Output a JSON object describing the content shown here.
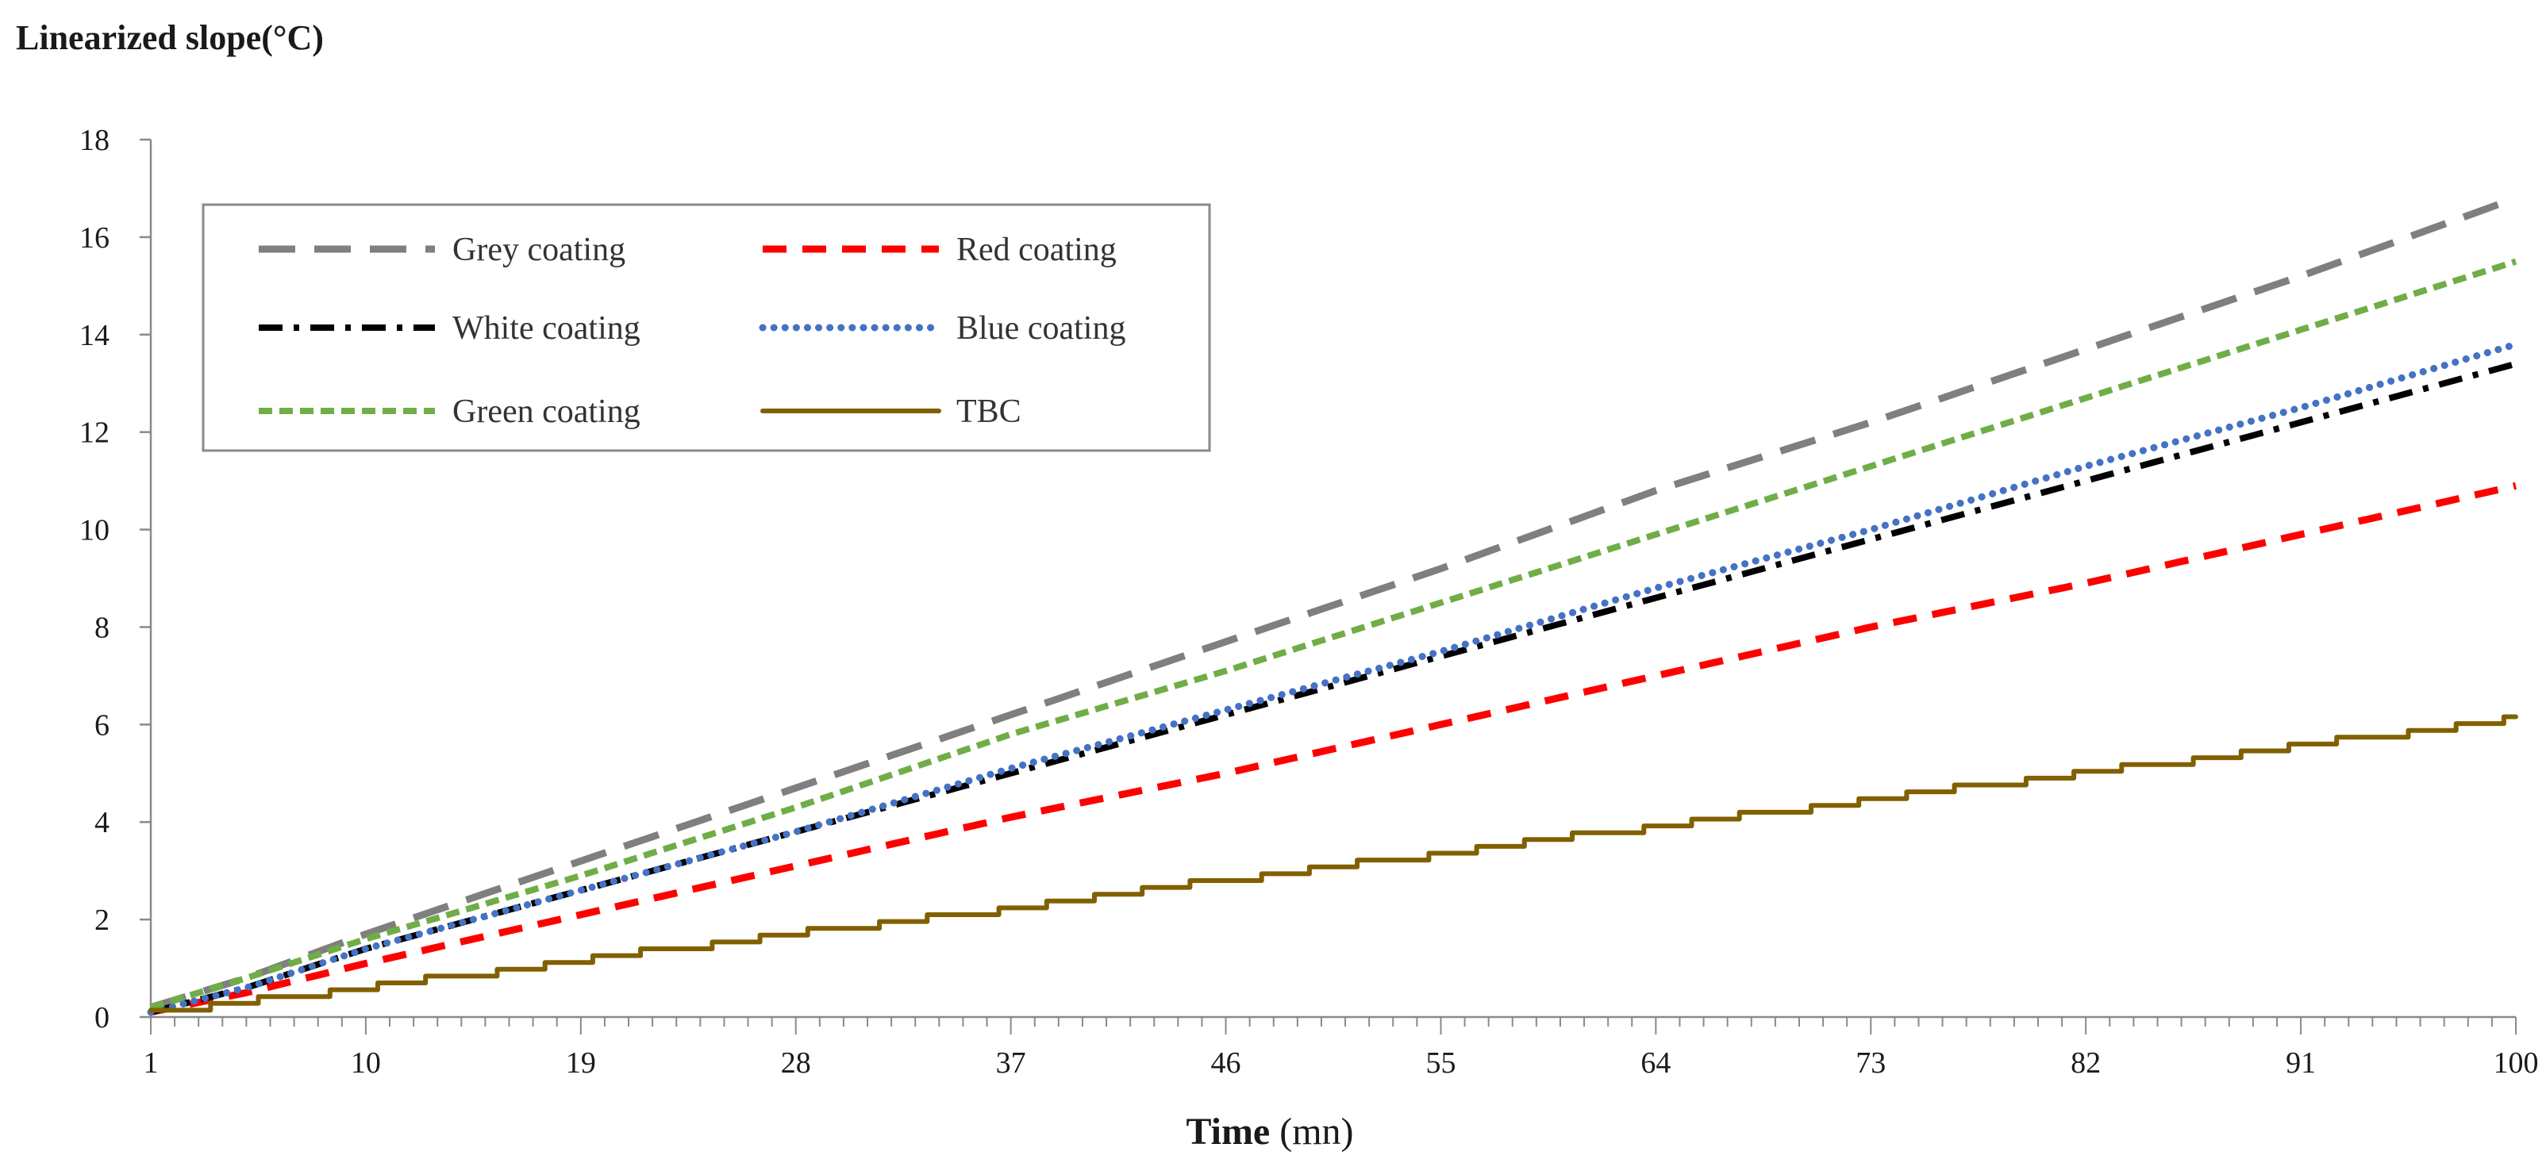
{
  "chart_data": {
    "type": "line",
    "title": "Linearized slope(°C)",
    "xlabel": "Time",
    "xlabel_unit": "(mn)",
    "ylabel": "Linearized slope(°C)",
    "ylim": [
      0,
      18
    ],
    "yticks": [
      "0",
      "2",
      "4",
      "6",
      "8",
      "10",
      "12",
      "14",
      "16",
      "18"
    ],
    "xlim": [
      1,
      100
    ],
    "xticks": [
      "1",
      "10",
      "19",
      "28",
      "37",
      "46",
      "55",
      "64",
      "73",
      "82",
      "91",
      "100"
    ],
    "grid": false,
    "legend_position": "top-left",
    "series": [
      {
        "name": "Grey coating",
        "color": "#7f7f7f",
        "style": "long-dash",
        "anchors_x": [
          1,
          5,
          10,
          19,
          28,
          37,
          46,
          55,
          64,
          73,
          82,
          91,
          100
        ],
        "anchors_y": [
          0.2,
          0.8,
          1.7,
          3.2,
          4.7,
          6.2,
          7.7,
          9.2,
          10.8,
          12.2,
          13.7,
          15.2,
          16.8
        ]
      },
      {
        "name": "Red coating",
        "color": "#ff0000",
        "style": "dash",
        "anchors_x": [
          1,
          5,
          10,
          19,
          28,
          37,
          46,
          55,
          64,
          73,
          82,
          91,
          100
        ],
        "anchors_y": [
          0.1,
          0.5,
          1.1,
          2.1,
          3.1,
          4.1,
          5.0,
          6.0,
          7.0,
          8.0,
          8.9,
          9.9,
          10.9
        ]
      },
      {
        "name": "White coating",
        "color": "#000000",
        "style": "dash-dot",
        "anchors_x": [
          1,
          5,
          10,
          19,
          28,
          37,
          46,
          55,
          64,
          73,
          82,
          91,
          100
        ],
        "anchors_y": [
          0.1,
          0.6,
          1.4,
          2.6,
          3.8,
          5.0,
          6.2,
          7.4,
          8.6,
          9.8,
          11.0,
          12.2,
          13.4
        ]
      },
      {
        "name": "Blue coating",
        "color": "#4472c4",
        "style": "dot",
        "anchors_x": [
          1,
          5,
          10,
          19,
          28,
          37,
          46,
          55,
          64,
          73,
          82,
          91,
          100
        ],
        "anchors_y": [
          0.1,
          0.6,
          1.4,
          2.6,
          3.8,
          5.1,
          6.3,
          7.5,
          8.8,
          10.0,
          11.3,
          12.5,
          13.8
        ]
      },
      {
        "name": "Green coating",
        "color": "#70ad47",
        "style": "short-dash",
        "anchors_x": [
          1,
          5,
          10,
          19,
          28,
          37,
          46,
          55,
          64,
          73,
          82,
          91,
          100
        ],
        "anchors_y": [
          0.2,
          0.8,
          1.6,
          2.9,
          4.3,
          5.8,
          7.1,
          8.5,
          9.9,
          11.3,
          12.7,
          14.1,
          15.5
        ]
      },
      {
        "name": "TBC",
        "color": "#806000",
        "style": "solid",
        "anchors_x": [
          1,
          5,
          10,
          19,
          28,
          37,
          46,
          55,
          64,
          73,
          82,
          91,
          100
        ],
        "anchors_y": [
          0.1,
          0.3,
          0.6,
          1.15,
          1.7,
          2.2,
          2.8,
          3.35,
          3.9,
          4.45,
          5.0,
          5.55,
          6.1
        ]
      }
    ]
  }
}
